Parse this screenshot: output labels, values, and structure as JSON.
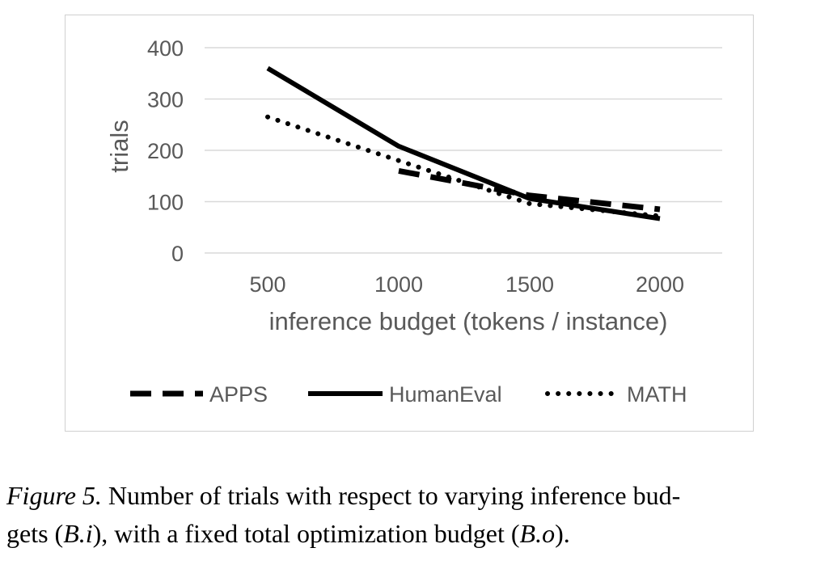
{
  "chart_data": {
    "type": "line",
    "title": "",
    "xlabel": "inference budget (tokens / instance)",
    "ylabel": "trials",
    "categories": [
      "500",
      "1000",
      "1500",
      "2000"
    ],
    "x": [
      500,
      1000,
      1500,
      2000
    ],
    "ylim": [
      0,
      400
    ],
    "yticks": [
      0,
      100,
      200,
      300,
      400
    ],
    "grid": true,
    "legend_position": "bottom",
    "series": [
      {
        "name": "APPS",
        "style": "dashed",
        "color": "#000000",
        "values": [
          null,
          160,
          112,
          85
        ]
      },
      {
        "name": "HumanEval",
        "style": "solid",
        "color": "#000000",
        "values": [
          360,
          208,
          106,
          67
        ]
      },
      {
        "name": "MATH",
        "style": "dotted",
        "color": "#000000",
        "values": [
          265,
          180,
          96,
          72
        ]
      }
    ]
  },
  "caption": {
    "figure_label": "Figure 5.",
    "line1": " Number of trials with respect to varying inference bud-",
    "line2_prefix": "gets (",
    "math1": "B.i",
    "line2_middle": "), with a fixed total optimization budget (",
    "math2": "B.o",
    "line2_suffix": ")."
  }
}
